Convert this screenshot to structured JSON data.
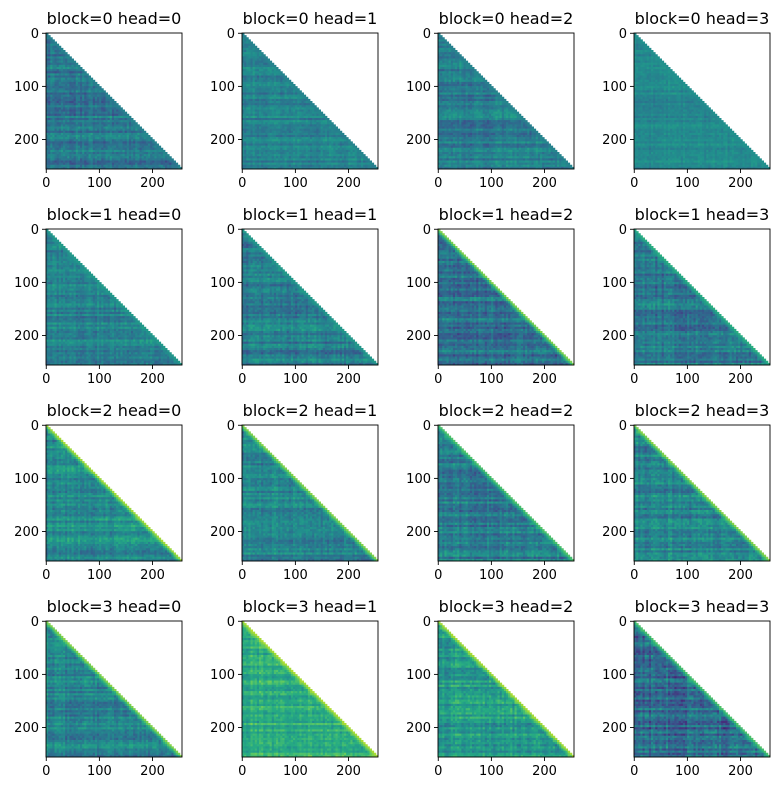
{
  "chart_data": {
    "type": "heatmap",
    "description_kind": "causal attention maps (lower-triangular), 4 blocks x 4 heads",
    "rows": 4,
    "cols": 4,
    "matrix_size": 256,
    "colormap": "viridis",
    "xticks": [
      0,
      100,
      200
    ],
    "yticks": [
      0,
      100,
      200
    ],
    "xtick_labels": [
      "0",
      "100",
      "200"
    ],
    "ytick_labels": [
      "0",
      "100",
      "200"
    ],
    "xlim": [
      0,
      256
    ],
    "ylim": [
      256,
      0
    ],
    "panels": [
      {
        "block": 0,
        "head": 0,
        "title": "block=0 head=0",
        "mean_level": 0.4,
        "diag_level": 0.45,
        "variation": 0.2,
        "seed": 11
      },
      {
        "block": 0,
        "head": 1,
        "title": "block=0 head=1",
        "mean_level": 0.45,
        "diag_level": 0.45,
        "variation": 0.15,
        "seed": 12
      },
      {
        "block": 0,
        "head": 2,
        "title": "block=0 head=2",
        "mean_level": 0.42,
        "diag_level": 0.45,
        "variation": 0.18,
        "seed": 13
      },
      {
        "block": 0,
        "head": 3,
        "title": "block=0 head=3",
        "mean_level": 0.48,
        "diag_level": 0.5,
        "variation": 0.12,
        "seed": 14
      },
      {
        "block": 1,
        "head": 0,
        "title": "block=1 head=0",
        "mean_level": 0.45,
        "diag_level": 0.55,
        "variation": 0.18,
        "seed": 21
      },
      {
        "block": 1,
        "head": 1,
        "title": "block=1 head=1",
        "mean_level": 0.42,
        "diag_level": 0.55,
        "variation": 0.2,
        "seed": 22
      },
      {
        "block": 1,
        "head": 2,
        "title": "block=1 head=2",
        "mean_level": 0.38,
        "diag_level": 0.85,
        "variation": 0.22,
        "seed": 23
      },
      {
        "block": 1,
        "head": 3,
        "title": "block=1 head=3",
        "mean_level": 0.4,
        "diag_level": 0.65,
        "variation": 0.22,
        "seed": 24
      },
      {
        "block": 2,
        "head": 0,
        "title": "block=2 head=0",
        "mean_level": 0.48,
        "diag_level": 0.9,
        "variation": 0.2,
        "seed": 31
      },
      {
        "block": 2,
        "head": 1,
        "title": "block=2 head=1",
        "mean_level": 0.45,
        "diag_level": 0.85,
        "variation": 0.2,
        "seed": 32
      },
      {
        "block": 2,
        "head": 2,
        "title": "block=2 head=2",
        "mean_level": 0.42,
        "diag_level": 0.75,
        "variation": 0.22,
        "seed": 33
      },
      {
        "block": 2,
        "head": 3,
        "title": "block=2 head=3",
        "mean_level": 0.45,
        "diag_level": 0.85,
        "variation": 0.22,
        "seed": 34
      },
      {
        "block": 3,
        "head": 0,
        "title": "block=3 head=0",
        "mean_level": 0.45,
        "diag_level": 0.85,
        "variation": 0.2,
        "seed": 41
      },
      {
        "block": 3,
        "head": 1,
        "title": "block=3 head=1",
        "mean_level": 0.62,
        "diag_level": 0.9,
        "variation": 0.18,
        "seed": 42
      },
      {
        "block": 3,
        "head": 2,
        "title": "block=3 head=2",
        "mean_level": 0.55,
        "diag_level": 0.9,
        "variation": 0.22,
        "seed": 43
      },
      {
        "block": 3,
        "head": 3,
        "title": "block=3 head=3",
        "mean_level": 0.35,
        "diag_level": 0.75,
        "variation": 0.28,
        "seed": 44
      }
    ]
  }
}
